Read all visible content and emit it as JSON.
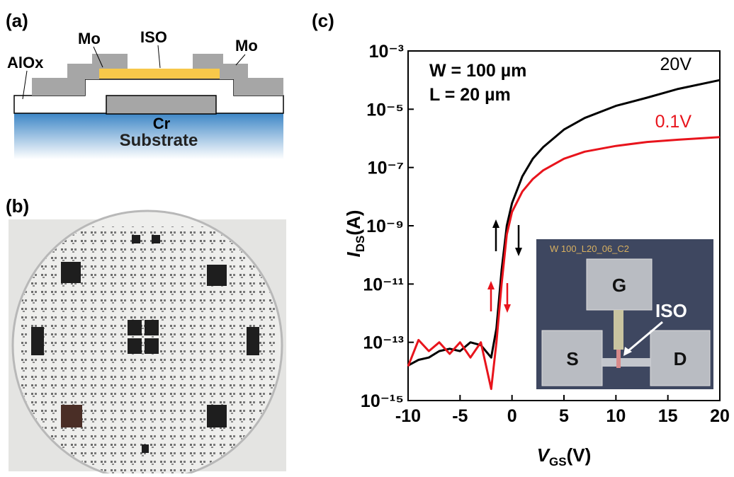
{
  "panel_a": {
    "label": "(a)",
    "layers": {
      "mo_left": "Mo",
      "iso": "ISO",
      "mo_right": "Mo",
      "alox": "AlOx",
      "cr": "Cr",
      "substrate": "Substrate"
    }
  },
  "panel_b": {
    "label": "(b)"
  },
  "chart_data": {
    "type": "line",
    "label": "(c)",
    "annotations": [
      "W = 100 µm",
      "L = 20 µm"
    ],
    "xlabel": {
      "symbol": "V",
      "subscript": "GS",
      "unit": "(V)"
    },
    "ylabel": {
      "symbol": "I",
      "subscript": "DS",
      "unit": "(A)"
    },
    "x": [
      -10,
      -9,
      -8,
      -7,
      -6,
      -5,
      -4,
      -3,
      -2,
      -1.5,
      -1,
      -0.5,
      0,
      1,
      2,
      3,
      5,
      7,
      10,
      13,
      16,
      20
    ],
    "series": [
      {
        "name": "20V",
        "color": "#000000",
        "values": [
          1.6e-14,
          2.5e-14,
          3e-14,
          5e-14,
          6e-14,
          5e-14,
          1e-13,
          8e-14,
          3e-14,
          3e-13,
          3e-11,
          1e-09,
          6e-09,
          5e-08,
          2e-07,
          5e-07,
          2e-06,
          5e-06,
          1.3e-05,
          2.5e-05,
          5e-05,
          0.0001
        ]
      },
      {
        "name": "0.1V",
        "color": "#e8141c",
        "values": [
          1.5e-14,
          1.2e-13,
          5e-14,
          1e-13,
          4e-14,
          1e-13,
          3e-14,
          1e-13,
          2.5e-15,
          1e-13,
          1e-11,
          5e-10,
          3e-09,
          1.5e-08,
          4e-08,
          8e-08,
          2e-07,
          3.5e-07,
          5.5e-07,
          7.5e-07,
          9e-07,
          1.1e-06
        ]
      }
    ],
    "log_y": true,
    "xlim": [
      -10,
      20
    ],
    "xticks": [
      -10,
      -5,
      0,
      5,
      10,
      15,
      20
    ],
    "ylim": [
      1e-15,
      0.001
    ],
    "yticks": [
      {
        "value": 1e-15,
        "label": "10⁻¹⁵"
      },
      {
        "value": 1e-13,
        "label": "10⁻¹³"
      },
      {
        "value": 1e-11,
        "label": "10⁻¹¹"
      },
      {
        "value": 1e-09,
        "label": "10⁻⁹"
      },
      {
        "value": 1e-07,
        "label": "10⁻⁷"
      },
      {
        "value": 1e-05,
        "label": "10⁻⁵"
      },
      {
        "value": 0.001,
        "label": "10⁻³"
      }
    ],
    "inset": {
      "chip_id": "W 100_L20_06_C2",
      "gate": "G",
      "source": "S",
      "drain": "D",
      "channel": "ISO"
    }
  }
}
